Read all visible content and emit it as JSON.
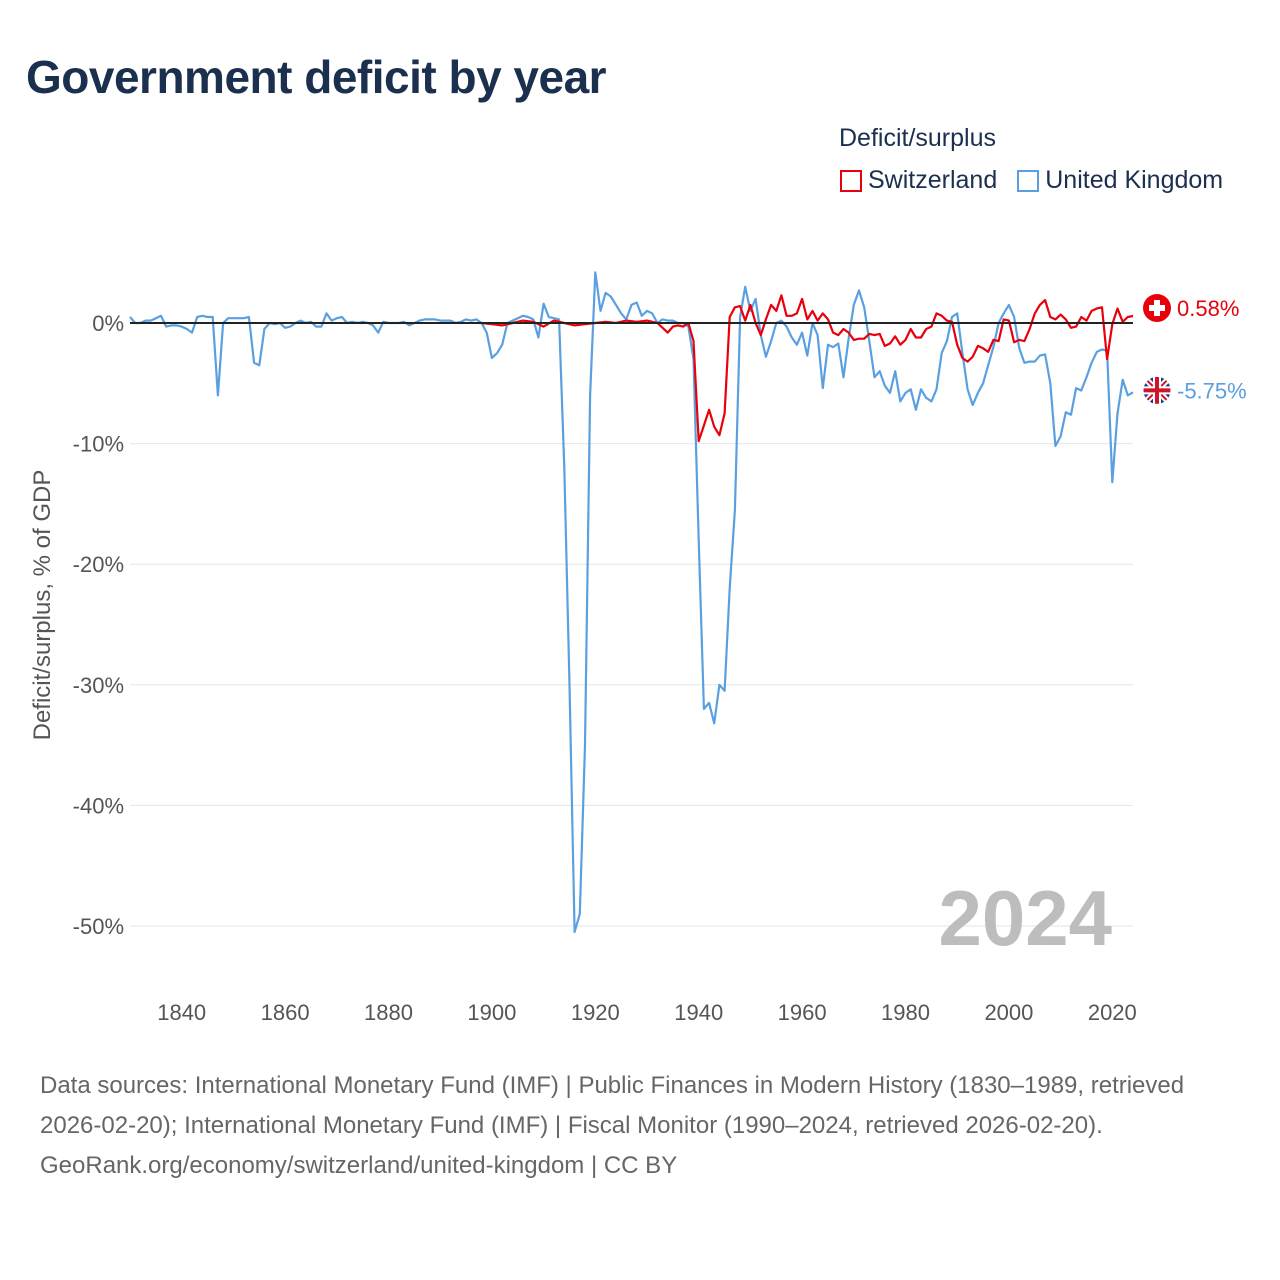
{
  "title": "Government deficit by year",
  "legend": {
    "title": "Deficit/surplus",
    "items": [
      {
        "label": "Switzerland",
        "color": "#e8000b"
      },
      {
        "label": "United Kingdom",
        "color": "#5aa0e0"
      }
    ]
  },
  "year_watermark": "2024",
  "footer": {
    "sources": "Data sources: International Monetary Fund (IMF) | Public Finances in Modern History (1830–1989, retrieved 2026-02-20); International Monetary Fund (IMF) | Fiscal Monitor (1990–2024, retrieved 2026-02-20).",
    "credit": "GeoRank.org/economy/switzerland/united-kingdom | CC BY"
  },
  "chart_data": {
    "type": "line",
    "title": "Government deficit by year",
    "xlabel": "",
    "ylabel": "Deficit/surplus, % of GDP",
    "xlim": [
      1830,
      2024
    ],
    "ylim": [
      -52,
      5
    ],
    "grid": true,
    "legend_position": "top-right",
    "xticks": [
      1840,
      1860,
      1880,
      1900,
      1920,
      1940,
      1960,
      1980,
      2000,
      2020
    ],
    "xtick_labels": [
      "1840",
      "1860",
      "1880",
      "1900",
      "1920",
      "1940",
      "1960",
      "1980",
      "2000",
      "2020"
    ],
    "yticks": [
      0,
      -10,
      -20,
      -30,
      -40,
      -50
    ],
    "ytick_labels": [
      "0%",
      "-10%",
      "-20%",
      "-30%",
      "-40%",
      "-50%"
    ],
    "series": [
      {
        "name": "Switzerland",
        "color": "#e8000b",
        "end_label": "0.58%",
        "points": [
          [
            1898,
            0
          ],
          [
            1900,
            -0.1
          ],
          [
            1902,
            -0.2
          ],
          [
            1904,
            0
          ],
          [
            1906,
            0.2
          ],
          [
            1908,
            0.1
          ],
          [
            1910,
            -0.3
          ],
          [
            1912,
            0.2
          ],
          [
            1914,
            0
          ],
          [
            1916,
            -0.2
          ],
          [
            1918,
            -0.1
          ],
          [
            1920,
            0
          ],
          [
            1922,
            0.1
          ],
          [
            1924,
            0
          ],
          [
            1926,
            0.2
          ],
          [
            1928,
            0.1
          ],
          [
            1930,
            0.2
          ],
          [
            1932,
            0
          ],
          [
            1934,
            -0.8
          ],
          [
            1935,
            -0.3
          ],
          [
            1936,
            -0.2
          ],
          [
            1937,
            -0.3
          ],
          [
            1938,
            0
          ],
          [
            1939,
            -1.5
          ],
          [
            1940,
            -9.8
          ],
          [
            1941,
            -8.5
          ],
          [
            1942,
            -7.2
          ],
          [
            1943,
            -8.6
          ],
          [
            1944,
            -9.3
          ],
          [
            1945,
            -7.5
          ],
          [
            1946,
            0.5
          ],
          [
            1947,
            1.3
          ],
          [
            1948,
            1.4
          ],
          [
            1949,
            0.2
          ],
          [
            1950,
            1.5
          ],
          [
            1951,
            0
          ],
          [
            1952,
            -1.0
          ],
          [
            1953,
            0.3
          ],
          [
            1954,
            1.5
          ],
          [
            1955,
            1.0
          ],
          [
            1956,
            2.3
          ],
          [
            1957,
            0.6
          ],
          [
            1958,
            0.6
          ],
          [
            1959,
            0.8
          ],
          [
            1960,
            2.0
          ],
          [
            1961,
            0.3
          ],
          [
            1962,
            1.0
          ],
          [
            1963,
            0.2
          ],
          [
            1964,
            0.8
          ],
          [
            1965,
            0.3
          ],
          [
            1966,
            -0.8
          ],
          [
            1967,
            -1.0
          ],
          [
            1968,
            -0.5
          ],
          [
            1969,
            -0.8
          ],
          [
            1970,
            -1.4
          ],
          [
            1971,
            -1.3
          ],
          [
            1972,
            -1.3
          ],
          [
            1973,
            -0.9
          ],
          [
            1974,
            -1.0
          ],
          [
            1975,
            -0.9
          ],
          [
            1976,
            -1.9
          ],
          [
            1977,
            -1.7
          ],
          [
            1978,
            -1.1
          ],
          [
            1979,
            -1.8
          ],
          [
            1980,
            -1.4
          ],
          [
            1981,
            -0.5
          ],
          [
            1982,
            -1.2
          ],
          [
            1983,
            -1.2
          ],
          [
            1984,
            -0.5
          ],
          [
            1985,
            -0.3
          ],
          [
            1986,
            0.8
          ],
          [
            1987,
            0.6
          ],
          [
            1988,
            0.2
          ],
          [
            1989,
            0.1
          ],
          [
            1990,
            -1.8
          ],
          [
            1991,
            -2.9
          ],
          [
            1992,
            -3.2
          ],
          [
            1993,
            -2.8
          ],
          [
            1994,
            -1.9
          ],
          [
            1995,
            -2.1
          ],
          [
            1996,
            -2.4
          ],
          [
            1997,
            -1.4
          ],
          [
            1998,
            -1.5
          ],
          [
            1999,
            0.3
          ],
          [
            2000,
            0.2
          ],
          [
            2001,
            -1.6
          ],
          [
            2002,
            -1.4
          ],
          [
            2003,
            -1.5
          ],
          [
            2004,
            -0.5
          ],
          [
            2005,
            0.8
          ],
          [
            2006,
            1.5
          ],
          [
            2007,
            1.9
          ],
          [
            2008,
            0.5
          ],
          [
            2009,
            0.3
          ],
          [
            2010,
            0.7
          ],
          [
            2011,
            0.3
          ],
          [
            2012,
            -0.4
          ],
          [
            2013,
            -0.3
          ],
          [
            2014,
            0.5
          ],
          [
            2015,
            0.2
          ],
          [
            2016,
            1.0
          ],
          [
            2017,
            1.2
          ],
          [
            2018,
            1.3
          ],
          [
            2019,
            -3.0
          ],
          [
            2020,
            -0.1
          ],
          [
            2021,
            1.2
          ],
          [
            2022,
            0.1
          ],
          [
            2023,
            0.5
          ],
          [
            2024,
            0.58
          ]
        ]
      },
      {
        "name": "United Kingdom",
        "color": "#5aa0e0",
        "end_label": "-5.75%",
        "points": [
          [
            1830,
            0.5
          ],
          [
            1831,
            0
          ],
          [
            1832,
            0
          ],
          [
            1833,
            0.2
          ],
          [
            1834,
            0.2
          ],
          [
            1835,
            0.4
          ],
          [
            1836,
            0.6
          ],
          [
            1837,
            -0.3
          ],
          [
            1838,
            -0.2
          ],
          [
            1839,
            -0.2
          ],
          [
            1840,
            -0.3
          ],
          [
            1841,
            -0.5
          ],
          [
            1842,
            -0.8
          ],
          [
            1843,
            0.5
          ],
          [
            1844,
            0.6
          ],
          [
            1845,
            0.5
          ],
          [
            1846,
            0.5
          ],
          [
            1847,
            -6.0
          ],
          [
            1848,
            0
          ],
          [
            1849,
            0.4
          ],
          [
            1850,
            0.4
          ],
          [
            1851,
            0.4
          ],
          [
            1852,
            0.4
          ],
          [
            1853,
            0.5
          ],
          [
            1854,
            -3.3
          ],
          [
            1855,
            -3.5
          ],
          [
            1856,
            -0.5
          ],
          [
            1857,
            0
          ],
          [
            1858,
            -0.1
          ],
          [
            1859,
            0
          ],
          [
            1860,
            -0.4
          ],
          [
            1861,
            -0.3
          ],
          [
            1862,
            0
          ],
          [
            1863,
            0.2
          ],
          [
            1864,
            0
          ],
          [
            1865,
            0.1
          ],
          [
            1866,
            -0.3
          ],
          [
            1867,
            -0.3
          ],
          [
            1868,
            0.8
          ],
          [
            1869,
            0.2
          ],
          [
            1870,
            0.4
          ],
          [
            1871,
            0.5
          ],
          [
            1872,
            0
          ],
          [
            1873,
            0.1
          ],
          [
            1874,
            0
          ],
          [
            1875,
            0.1
          ],
          [
            1876,
            0
          ],
          [
            1877,
            -0.2
          ],
          [
            1878,
            -0.8
          ],
          [
            1879,
            0.1
          ],
          [
            1880,
            0
          ],
          [
            1881,
            0
          ],
          [
            1882,
            0
          ],
          [
            1883,
            0.1
          ],
          [
            1884,
            -0.2
          ],
          [
            1885,
            0
          ],
          [
            1886,
            0.2
          ],
          [
            1887,
            0.3
          ],
          [
            1888,
            0.3
          ],
          [
            1889,
            0.3
          ],
          [
            1890,
            0.2
          ],
          [
            1891,
            0.2
          ],
          [
            1892,
            0.2
          ],
          [
            1893,
            0
          ],
          [
            1894,
            0.1
          ],
          [
            1895,
            0.3
          ],
          [
            1896,
            0.2
          ],
          [
            1897,
            0.3
          ],
          [
            1898,
            0
          ],
          [
            1899,
            -0.8
          ],
          [
            1900,
            -2.9
          ],
          [
            1901,
            -2.5
          ],
          [
            1902,
            -1.8
          ],
          [
            1903,
            0
          ],
          [
            1904,
            0.2
          ],
          [
            1905,
            0.4
          ],
          [
            1906,
            0.6
          ],
          [
            1907,
            0.5
          ],
          [
            1908,
            0.3
          ],
          [
            1909,
            -1.2
          ],
          [
            1910,
            1.6
          ],
          [
            1911,
            0.5
          ],
          [
            1912,
            0.4
          ],
          [
            1913,
            0.3
          ],
          [
            1914,
            -12
          ],
          [
            1915,
            -30
          ],
          [
            1916,
            -50.5
          ],
          [
            1917,
            -49
          ],
          [
            1918,
            -35
          ],
          [
            1919,
            -6
          ],
          [
            1920,
            4.2
          ],
          [
            1921,
            1.0
          ],
          [
            1922,
            2.5
          ],
          [
            1923,
            2.2
          ],
          [
            1924,
            1.5
          ],
          [
            1925,
            0.8
          ],
          [
            1926,
            0.3
          ],
          [
            1927,
            1.5
          ],
          [
            1928,
            1.7
          ],
          [
            1929,
            0.6
          ],
          [
            1930,
            1.0
          ],
          [
            1931,
            0.8
          ],
          [
            1932,
            0
          ],
          [
            1933,
            0.3
          ],
          [
            1934,
            0.2
          ],
          [
            1935,
            0.2
          ],
          [
            1936,
            0
          ],
          [
            1937,
            0
          ],
          [
            1938,
            -0.3
          ],
          [
            1939,
            -3
          ],
          [
            1940,
            -18
          ],
          [
            1941,
            -32
          ],
          [
            1942,
            -31.5
          ],
          [
            1943,
            -33.2
          ],
          [
            1944,
            -30
          ],
          [
            1945,
            -30.5
          ],
          [
            1946,
            -22
          ],
          [
            1947,
            -15.5
          ],
          [
            1948,
            0.5
          ],
          [
            1949,
            3.0
          ],
          [
            1950,
            1.0
          ],
          [
            1951,
            2.0
          ],
          [
            1952,
            -1.0
          ],
          [
            1953,
            -2.8
          ],
          [
            1954,
            -1.5
          ],
          [
            1955,
            0
          ],
          [
            1956,
            0.2
          ],
          [
            1957,
            -0.3
          ],
          [
            1958,
            -1.2
          ],
          [
            1959,
            -1.8
          ],
          [
            1960,
            -0.8
          ],
          [
            1961,
            -2.7
          ],
          [
            1962,
            0
          ],
          [
            1963,
            -1
          ],
          [
            1964,
            -5.4
          ],
          [
            1965,
            -1.8
          ],
          [
            1966,
            -2.0
          ],
          [
            1967,
            -1.7
          ],
          [
            1968,
            -4.5
          ],
          [
            1969,
            -1.3
          ],
          [
            1970,
            1.5
          ],
          [
            1971,
            2.7
          ],
          [
            1972,
            1.3
          ],
          [
            1973,
            -1.5
          ],
          [
            1974,
            -4.5
          ],
          [
            1975,
            -4.0
          ],
          [
            1976,
            -5.2
          ],
          [
            1977,
            -5.8
          ],
          [
            1978,
            -4.0
          ],
          [
            1979,
            -6.5
          ],
          [
            1980,
            -5.8
          ],
          [
            1981,
            -5.5
          ],
          [
            1982,
            -7.2
          ],
          [
            1983,
            -5.5
          ],
          [
            1984,
            -6.2
          ],
          [
            1985,
            -6.5
          ],
          [
            1986,
            -5.5
          ],
          [
            1987,
            -2.5
          ],
          [
            1988,
            -1.5
          ],
          [
            1989,
            0.5
          ],
          [
            1990,
            0.8
          ],
          [
            1991,
            -2.5
          ],
          [
            1992,
            -5.5
          ],
          [
            1993,
            -6.8
          ],
          [
            1994,
            -5.8
          ],
          [
            1995,
            -5.0
          ],
          [
            1996,
            -3.5
          ],
          [
            1997,
            -2.0
          ],
          [
            1998,
            0
          ],
          [
            1999,
            0.8
          ],
          [
            2000,
            1.5
          ],
          [
            2001,
            0.5
          ],
          [
            2002,
            -2.1
          ],
          [
            2003,
            -3.3
          ],
          [
            2004,
            -3.2
          ],
          [
            2005,
            -3.2
          ],
          [
            2006,
            -2.7
          ],
          [
            2007,
            -2.6
          ],
          [
            2008,
            -5.0
          ],
          [
            2009,
            -10.2
          ],
          [
            2010,
            -9.4
          ],
          [
            2011,
            -7.4
          ],
          [
            2012,
            -7.6
          ],
          [
            2013,
            -5.4
          ],
          [
            2014,
            -5.6
          ],
          [
            2015,
            -4.5
          ],
          [
            2016,
            -3.3
          ],
          [
            2017,
            -2.4
          ],
          [
            2018,
            -2.2
          ],
          [
            2019,
            -2.3
          ],
          [
            2020,
            -13.2
          ],
          [
            2021,
            -7.5
          ],
          [
            2022,
            -4.7
          ],
          [
            2023,
            -6.0
          ],
          [
            2024,
            -5.75
          ]
        ]
      }
    ]
  }
}
